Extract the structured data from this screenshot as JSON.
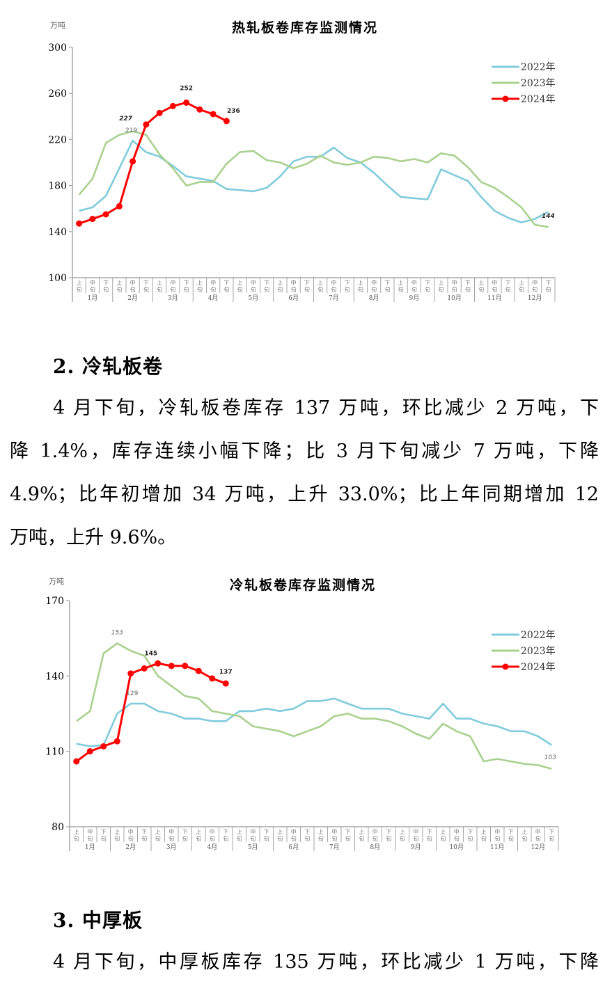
{
  "colors": {
    "series_2022": "#80cbdc",
    "series_2023": "#a9d18e",
    "series_2024": "#ff0000",
    "axis": "#a6a6a6"
  },
  "chart_data": [
    {
      "type": "line",
      "title": "热轧板卷库存监测情况",
      "unit_label": "万吨",
      "ylim": [
        100,
        300
      ],
      "yticks": [
        100,
        140,
        180,
        220,
        260,
        300
      ],
      "grid": false,
      "legend_position": "top-right",
      "dekad_labels": [
        "上旬",
        "中旬",
        "下旬"
      ],
      "months": [
        "1月",
        "2月",
        "3月",
        "4月",
        "5月",
        "6月",
        "7月",
        "8月",
        "9月",
        "10月",
        "11月",
        "12月"
      ],
      "series": [
        {
          "name": "2022年",
          "color": "#80cbdc",
          "marker": false,
          "values": [
            158,
            161,
            171,
            195,
            219,
            209,
            205,
            197,
            188,
            186,
            184,
            177,
            176,
            175,
            178,
            188,
            201,
            205,
            205,
            213,
            204,
            200,
            191,
            180,
            170,
            169,
            168,
            194,
            189,
            184,
            170,
            158,
            152,
            148,
            151,
            157
          ]
        },
        {
          "name": "2023年",
          "color": "#a9d18e",
          "marker": false,
          "values": [
            172,
            186,
            217,
            224,
            227,
            224,
            207,
            195,
            180,
            183,
            183,
            199,
            209,
            210,
            202,
            200,
            195,
            199,
            206,
            200,
            198,
            200,
            205,
            204,
            201,
            203,
            200,
            208,
            206,
            196,
            183,
            178,
            170,
            161,
            146,
            144
          ]
        },
        {
          "name": "2024年",
          "color": "#ff0000",
          "marker": true,
          "values": [
            147,
            151,
            155,
            162,
            201,
            233,
            243,
            249,
            252,
            246,
            242,
            236
          ]
        }
      ],
      "data_labels": [
        {
          "series": 0,
          "index": 4,
          "text": "219",
          "style": "plain"
        },
        {
          "series": 1,
          "index": 4,
          "text": "227",
          "style": "bold-italic"
        },
        {
          "series": 2,
          "index": 8,
          "text": "252",
          "style": "bold"
        },
        {
          "series": 2,
          "index": 11,
          "text": "236",
          "style": "bold"
        },
        {
          "series": 1,
          "index": 35,
          "text": "144",
          "style": "bold-italic"
        }
      ]
    },
    {
      "type": "line",
      "title": "冷轧板卷库存监测情况",
      "unit_label": "万吨",
      "ylim": [
        80,
        170
      ],
      "yticks": [
        80,
        110,
        140,
        170
      ],
      "grid": false,
      "legend_position": "top-right",
      "dekad_labels": [
        "上旬",
        "中旬",
        "下旬"
      ],
      "months": [
        "1月",
        "2月",
        "3月",
        "4月",
        "5月",
        "6月",
        "7月",
        "8月",
        "9月",
        "10月",
        "11月",
        "12月"
      ],
      "series": [
        {
          "name": "2022年",
          "color": "#80cbdc",
          "marker": false,
          "values": [
            113,
            112,
            112.5,
            125,
            129,
            129,
            126,
            125,
            123,
            123,
            122,
            122,
            126,
            126,
            127,
            126,
            127,
            130,
            130,
            131,
            129,
            127,
            127,
            127,
            125,
            124,
            123,
            129,
            123,
            123,
            121,
            120,
            118,
            118,
            116,
            112.5
          ]
        },
        {
          "name": "2023年",
          "color": "#a9d18e",
          "marker": false,
          "values": [
            122,
            126,
            149,
            153,
            150,
            148,
            140,
            136,
            132,
            131,
            126,
            125,
            124,
            120,
            119,
            118,
            116,
            118,
            120,
            124,
            125,
            123,
            123,
            122,
            120,
            117,
            115,
            121,
            118,
            116,
            106,
            107,
            106,
            105,
            104.5,
            103
          ]
        },
        {
          "name": "2024年",
          "color": "#ff0000",
          "marker": true,
          "values": [
            106,
            110,
            112,
            114,
            141,
            143,
            145,
            144,
            144,
            142,
            139,
            137
          ]
        }
      ],
      "data_labels": [
        {
          "series": 1,
          "index": 3,
          "text": "153",
          "style": "italic"
        },
        {
          "series": 0,
          "index": 4,
          "text": "129",
          "style": "plain"
        },
        {
          "series": 2,
          "index": 6,
          "text": "145",
          "style": "bold"
        },
        {
          "series": 2,
          "index": 11,
          "text": "137",
          "style": "bold"
        },
        {
          "series": 1,
          "index": 35,
          "text": "103",
          "style": "italic"
        }
      ]
    }
  ],
  "section2": {
    "heading": "2. 冷轧板卷",
    "lines": [
      "4 月下旬，冷轧板卷库存 137 万吨，环比减少 2 万吨，下",
      "降 1.4%，库存连续小幅下降；比 3 月下旬减少 7 万吨，下降",
      "4.9%；比年初增加 34 万吨，上升 33.0%；比上年同期增加 12",
      "万吨，上升 9.6%。"
    ]
  },
  "section3": {
    "heading": "3. 中厚板",
    "lines": [
      "4 月下旬，中厚板库存 135 万吨，环比减少 1 万吨，下降"
    ]
  }
}
